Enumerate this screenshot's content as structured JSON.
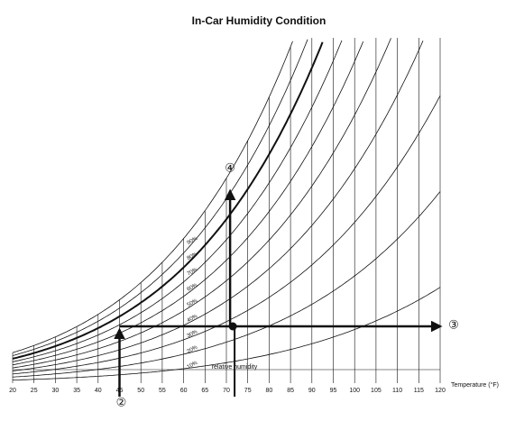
{
  "chart_data": {
    "type": "psychrometric",
    "title": "In-Car Humidity Condition",
    "x_label": "Temperature (°F)",
    "xlim": [
      20,
      120
    ],
    "xticks": [
      20,
      25,
      30,
      35,
      40,
      45,
      50,
      55,
      60,
      65,
      70,
      75,
      80,
      85,
      90,
      95,
      100,
      105,
      110,
      115,
      120
    ],
    "humidity_curves": {
      "values": [
        10,
        20,
        30,
        40,
        50,
        60,
        70,
        80,
        90,
        100
      ],
      "value_labels": [
        "10%",
        "20%",
        "30%",
        "40%",
        "50%",
        "60%",
        "70%",
        "80%",
        "90%",
        null
      ],
      "bold": 80
    },
    "curve_caption": "relative humidity",
    "markers": [
      {
        "label": "②",
        "x": 45
      },
      {
        "label": "④",
        "x": 71.5
      },
      {
        "label": "③"
      }
    ],
    "color": "#111111"
  }
}
